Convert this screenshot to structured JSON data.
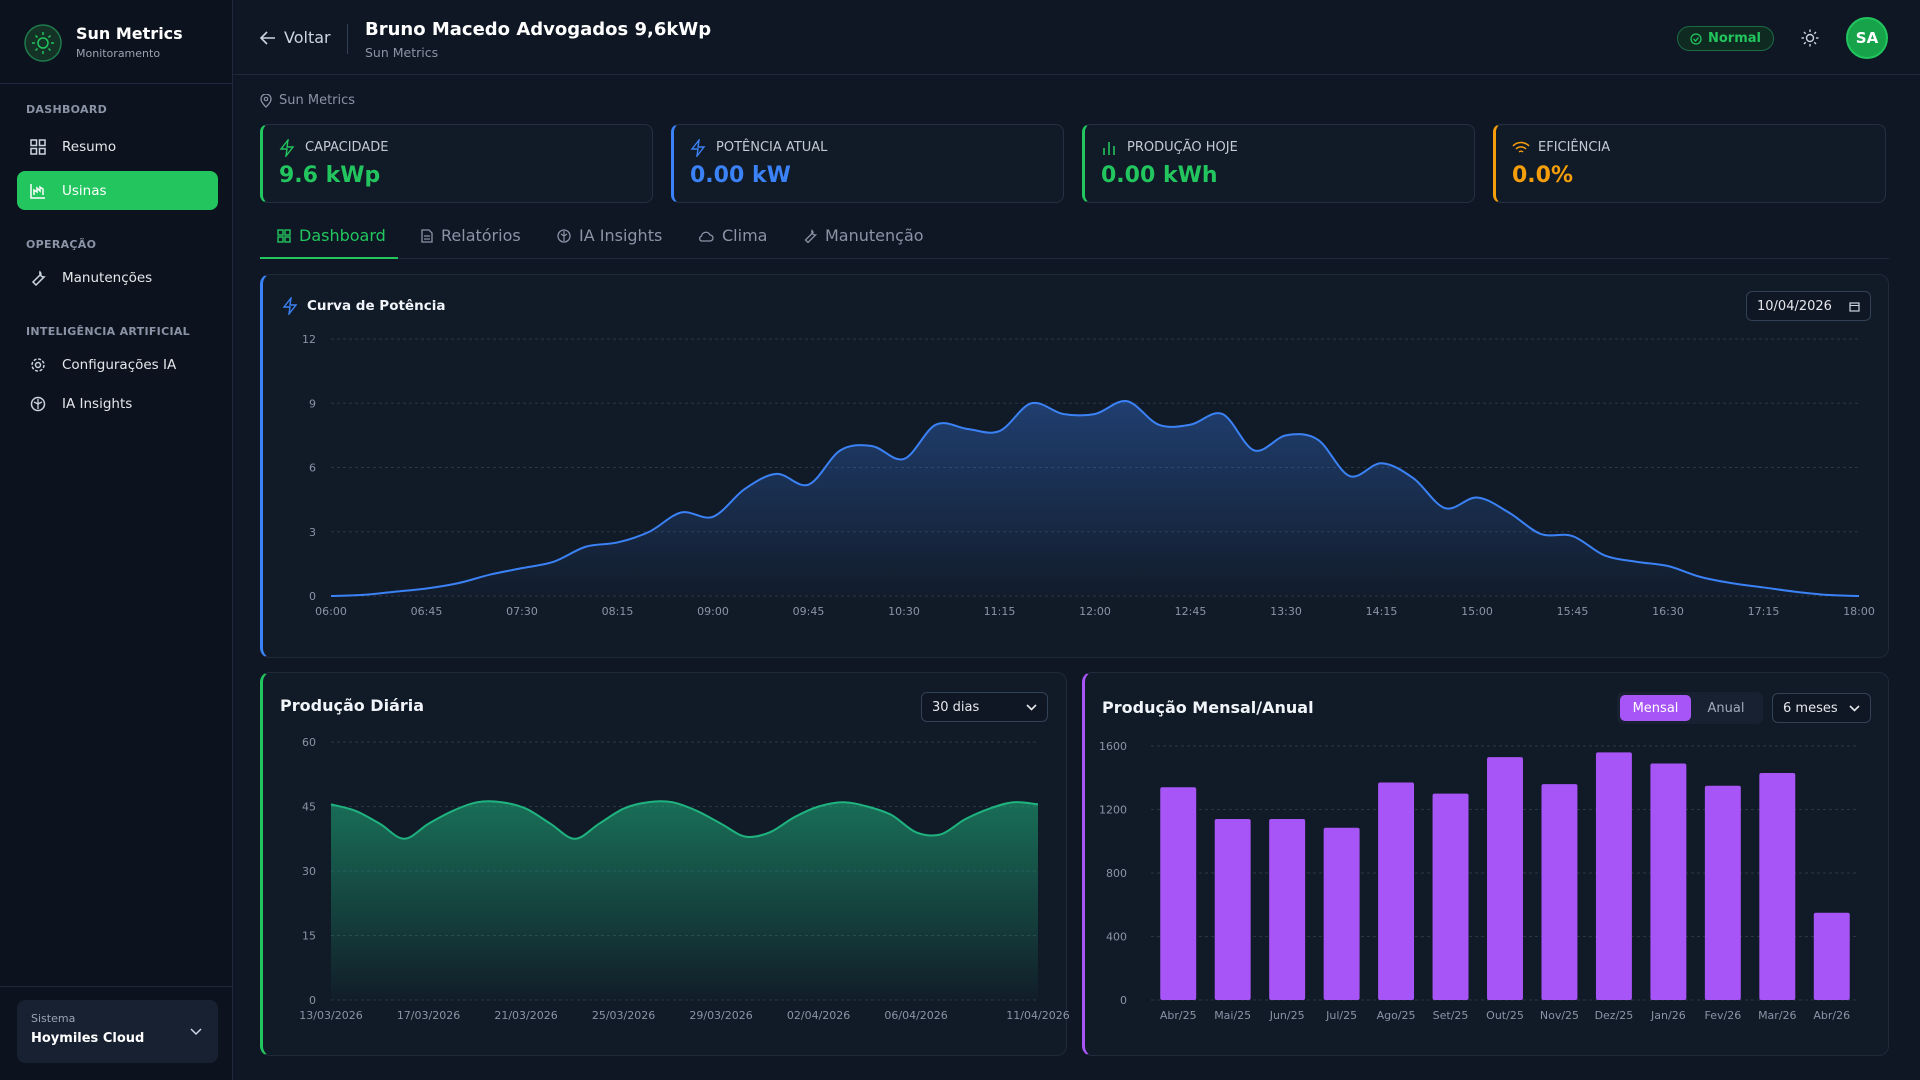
{
  "sidebar": {
    "brand": "Sun Metrics",
    "brand_sub": "Monitoramento",
    "sections": [
      {
        "title": "DASHBOARD",
        "items": [
          "Resumo",
          "Usinas"
        ]
      },
      {
        "title": "OPERAÇÃO",
        "items": [
          "Manutenções"
        ]
      },
      {
        "title": "INTELIGÊNCIA ARTIFICIAL",
        "items": [
          "Configurações IA",
          "IA Insights"
        ]
      }
    ],
    "system_label": "Sistema",
    "system_value": "Hoymiles Cloud"
  },
  "header": {
    "back": "Voltar",
    "title": "Bruno Macedo Advogados 9,6kWp",
    "subtitle": "Sun Metrics",
    "status": "Normal",
    "avatar": "SA"
  },
  "location": "Sun Metrics",
  "stats": [
    {
      "label": "CAPACIDADE",
      "value": "9.6 kWp"
    },
    {
      "label": "POTÊNCIA ATUAL",
      "value": "0.00 kW"
    },
    {
      "label": "PRODUÇÃO HOJE",
      "value": "0.00 kWh"
    },
    {
      "label": "EFICIÊNCIA",
      "value": "0.0%"
    }
  ],
  "tabs": [
    "Dashboard",
    "Relatórios",
    "IA Insights",
    "Clima",
    "Manutenção"
  ],
  "controls": {
    "date": "10/04/2026",
    "range": "30 dias",
    "toggle": [
      "Mensal",
      "Anual"
    ],
    "months": "6 meses"
  },
  "chart_data": [
    {
      "type": "area",
      "title": "Curva de Potência",
      "color": "#3b82f6",
      "categories": [
        "06:00",
        null,
        null,
        "06:45",
        null,
        null,
        "07:30",
        null,
        null,
        "08:15",
        null,
        null,
        "09:00",
        null,
        null,
        "09:45",
        null,
        null,
        "10:30",
        null,
        null,
        "11:15",
        null,
        null,
        "12:00",
        null,
        null,
        "12:45",
        null,
        null,
        "13:30",
        null,
        null,
        "14:15",
        null,
        null,
        "15:00",
        null,
        null,
        "15:45",
        null,
        null,
        "16:30",
        null,
        null,
        "17:15",
        null,
        null,
        "18:00"
      ],
      "values": [
        0,
        0.05,
        0.2,
        0.35,
        0.6,
        1.0,
        1.3,
        1.6,
        2.3,
        2.5,
        3.0,
        3.9,
        3.7,
        5.0,
        5.7,
        5.2,
        6.8,
        7.0,
        6.4,
        8.0,
        7.8,
        7.7,
        9.0,
        8.5,
        8.5,
        9.1,
        8.0,
        8.0,
        8.5,
        6.8,
        7.5,
        7.3,
        5.6,
        6.2,
        5.5,
        4.1,
        4.6,
        3.9,
        2.9,
        2.8,
        1.9,
        1.6,
        1.4,
        0.9,
        0.6,
        0.4,
        0.2,
        0.05,
        0
      ],
      "ylim": [
        0,
        12
      ],
      "yticks": [
        0,
        3,
        6,
        9,
        12
      ],
      "grid": true
    },
    {
      "type": "area",
      "title": "Produção Diária",
      "color": "#1fb37f",
      "categories": [
        "13/03/2026",
        null,
        null,
        null,
        "17/03/2026",
        null,
        null,
        null,
        "21/03/2026",
        null,
        null,
        null,
        "25/03/2026",
        null,
        null,
        null,
        "29/03/2026",
        null,
        null,
        null,
        "02/04/2026",
        null,
        null,
        null,
        "06/04/2026",
        null,
        null,
        null,
        null,
        "11/04/2026"
      ],
      "values": [
        45.5,
        44,
        41,
        37.5,
        41,
        44,
        46,
        46,
        44.5,
        41,
        37.5,
        41,
        44.5,
        46,
        46,
        44,
        41,
        38,
        39,
        42.5,
        45,
        46,
        45,
        43,
        39,
        38.5,
        42,
        44.5,
        46,
        45.5
      ],
      "ylim": [
        0,
        60
      ],
      "yticks": [
        0,
        15,
        30,
        45,
        60
      ],
      "grid": true
    },
    {
      "type": "bar",
      "title": "Produção Mensal/Anual",
      "color": "#a855f7",
      "categories": [
        "Abr/25",
        "Mai/25",
        "Jun/25",
        "Jul/25",
        "Ago/25",
        "Set/25",
        "Out/25",
        "Nov/25",
        "Dez/25",
        "Jan/26",
        "Fev/26",
        "Mar/26",
        "Abr/26"
      ],
      "values": [
        1340,
        1140,
        1140,
        1085,
        1370,
        1300,
        1530,
        1360,
        1560,
        1490,
        1350,
        1430,
        550
      ],
      "ylim": [
        0,
        1600
      ],
      "yticks": [
        0,
        400,
        800,
        1200,
        1600
      ],
      "grid": true
    }
  ]
}
